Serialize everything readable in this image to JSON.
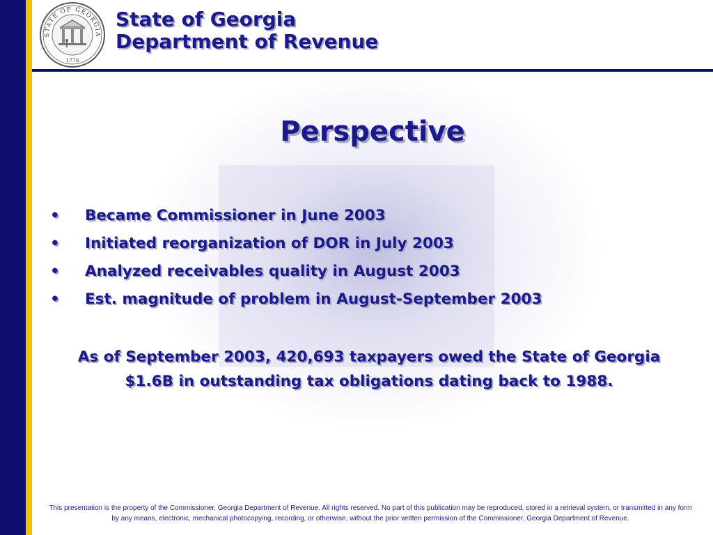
{
  "colors": {
    "navy": "#0d0d6e",
    "gold": "#f2c200",
    "title_blue": "#1a1a8c"
  },
  "header": {
    "line1": "State of Georgia",
    "line2": "Department of Revenue",
    "seal": {
      "icon": "state-of-georgia-seal-icon",
      "ring_text": "STATE OF GEORGIA",
      "year": "1776"
    }
  },
  "slide": {
    "title": "Perspective",
    "bullet_char": "•",
    "bullets": [
      "Became Commissioner in June 2003",
      "Initiated reorganization of DOR in July 2003",
      "Analyzed receivables quality in August 2003",
      "Est. magnitude of problem in August-September 2003"
    ],
    "summary": "As of September 2003, 420,693 taxpayers owed the State of Georgia $1.6B in outstanding tax obligations dating back to 1988."
  },
  "footer": {
    "text": "This presentation is the property of the Commissioner, Georgia Department of Revenue.  All rights reserved.  No part of this publication may be reproduced, stored in a retrieval system, or transmitted in any form by any means, electronic, mechanical photocopying, recording, or otherwise, without the prior written permission of the Commissioner, Georgia Department of Revenue."
  }
}
